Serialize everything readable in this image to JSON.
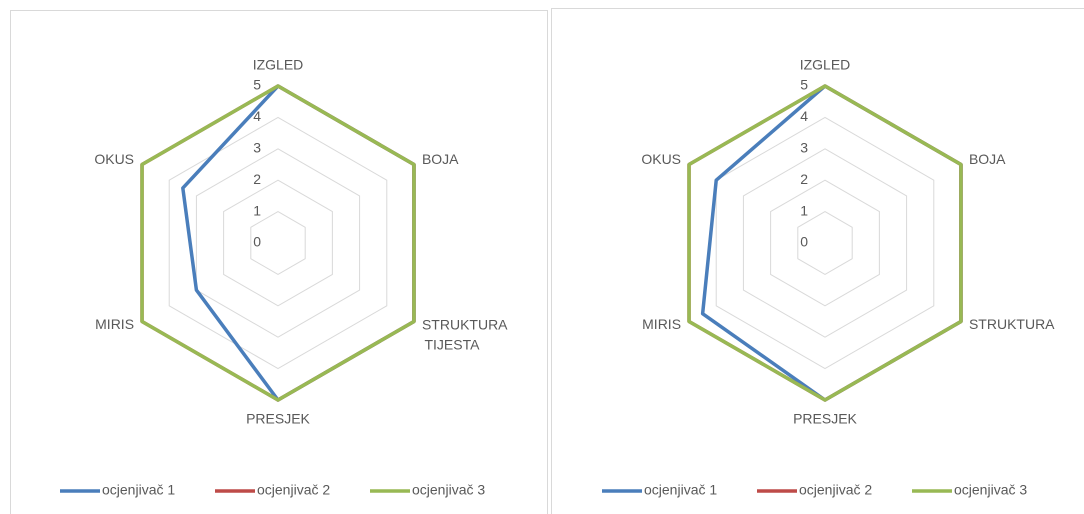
{
  "chart_data": [
    {
      "type": "radar",
      "categories": [
        "IZGLED",
        "BOJA",
        "STRUKTURA TIJESTA",
        "PRESJEK",
        "MIRIS",
        "OKUS"
      ],
      "ylim": [
        0,
        5
      ],
      "yticks": [
        0,
        1,
        2,
        3,
        4,
        5
      ],
      "grid": true,
      "legend": "bottom",
      "series": [
        {
          "name": "ocjenjivač 1",
          "color": "#4a7ebb",
          "values": [
            5,
            5,
            5,
            5,
            3,
            3.5
          ]
        },
        {
          "name": "ocjenjivač 2",
          "color": "#be4b48",
          "values": [
            5,
            5,
            5,
            5,
            5,
            5
          ]
        },
        {
          "name": "ocjenjivač 3",
          "color": "#98b954",
          "values": [
            5,
            5,
            5,
            5,
            5,
            5
          ]
        }
      ]
    },
    {
      "type": "radar",
      "categories": [
        "IZGLED",
        "BOJA",
        "STRUKTURA",
        "PRESJEK",
        "MIRIS",
        "OKUS"
      ],
      "ylim": [
        0,
        5
      ],
      "yticks": [
        0,
        1,
        2,
        3,
        4,
        5
      ],
      "grid": true,
      "legend": "bottom",
      "series": [
        {
          "name": "ocjenjivač 1",
          "color": "#4a7ebb",
          "values": [
            5,
            5,
            5,
            5,
            4.5,
            4
          ]
        },
        {
          "name": "ocjenjivač 2",
          "color": "#be4b48",
          "values": [
            5,
            5,
            5,
            5,
            5,
            5
          ]
        },
        {
          "name": "ocjenjivač 3",
          "color": "#98b954",
          "values": [
            5,
            5,
            5,
            5,
            5,
            5
          ]
        }
      ]
    }
  ]
}
